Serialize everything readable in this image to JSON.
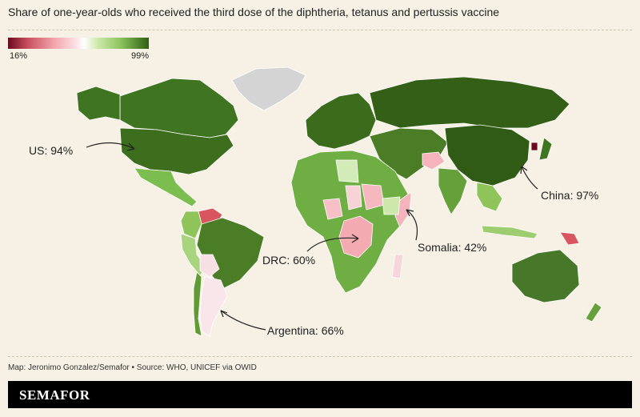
{
  "title": "Share of one-year-olds who received the third dose of the diphtheria, tetanus and pertussis vaccine",
  "source": "Map: Jeronimo Gonzalez/Semafor • Source: WHO, UNICEF via OWID",
  "brand": "SEMAFOR",
  "chart_data": {
    "type": "choropleth",
    "legend": {
      "min_label": "16%",
      "max_label": "99%",
      "min": 16,
      "max": 99,
      "placement": "top-left"
    },
    "colors": {
      "low": "#6b0a1e",
      "mid": "#ffffff",
      "high": "#2f5f13",
      "no_data": "#d9d9d9"
    },
    "annotations": [
      {
        "label": "US: 94%",
        "country": "US",
        "value": 94
      },
      {
        "label": "China: 97%",
        "country": "China",
        "value": 97
      },
      {
        "label": "Somalia: 42%",
        "country": "Somalia",
        "value": 42
      },
      {
        "label": "DRC: 60%",
        "country": "DRC",
        "value": 60
      },
      {
        "label": "Argentina: 66%",
        "country": "Argentina",
        "value": 66
      }
    ]
  }
}
